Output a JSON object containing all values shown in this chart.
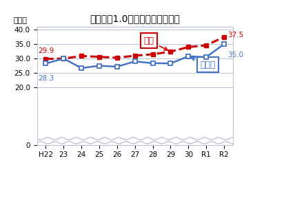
{
  "title": "裸眼視力1.0未満の小学生の割合",
  "ylabel": "（％）",
  "x_labels": [
    "H22",
    "23",
    "24",
    "25",
    "26",
    "27",
    "28",
    "29",
    "30",
    "R1",
    "R2"
  ],
  "zenkoku": [
    29.9,
    30.0,
    30.9,
    30.6,
    30.3,
    31.0,
    31.5,
    32.4,
    34.0,
    34.6,
    37.5
  ],
  "saitama": [
    28.3,
    30.0,
    26.7,
    27.5,
    27.2,
    29.0,
    28.4,
    28.3,
    30.8,
    30.5,
    35.0
  ],
  "zenkoku_color": "#CC0000",
  "saitama_color": "#4472C4",
  "background": "#FFFFFF",
  "grid_color": "#B8C4D8",
  "annotation_zenkoku": "全国",
  "annotation_saitama": "埼玉県",
  "label_H22_zenkoku": "29.9",
  "label_H22_saitama": "28.3",
  "label_R2_zenkoku": "37.5",
  "label_R2_saitama": "35.0"
}
